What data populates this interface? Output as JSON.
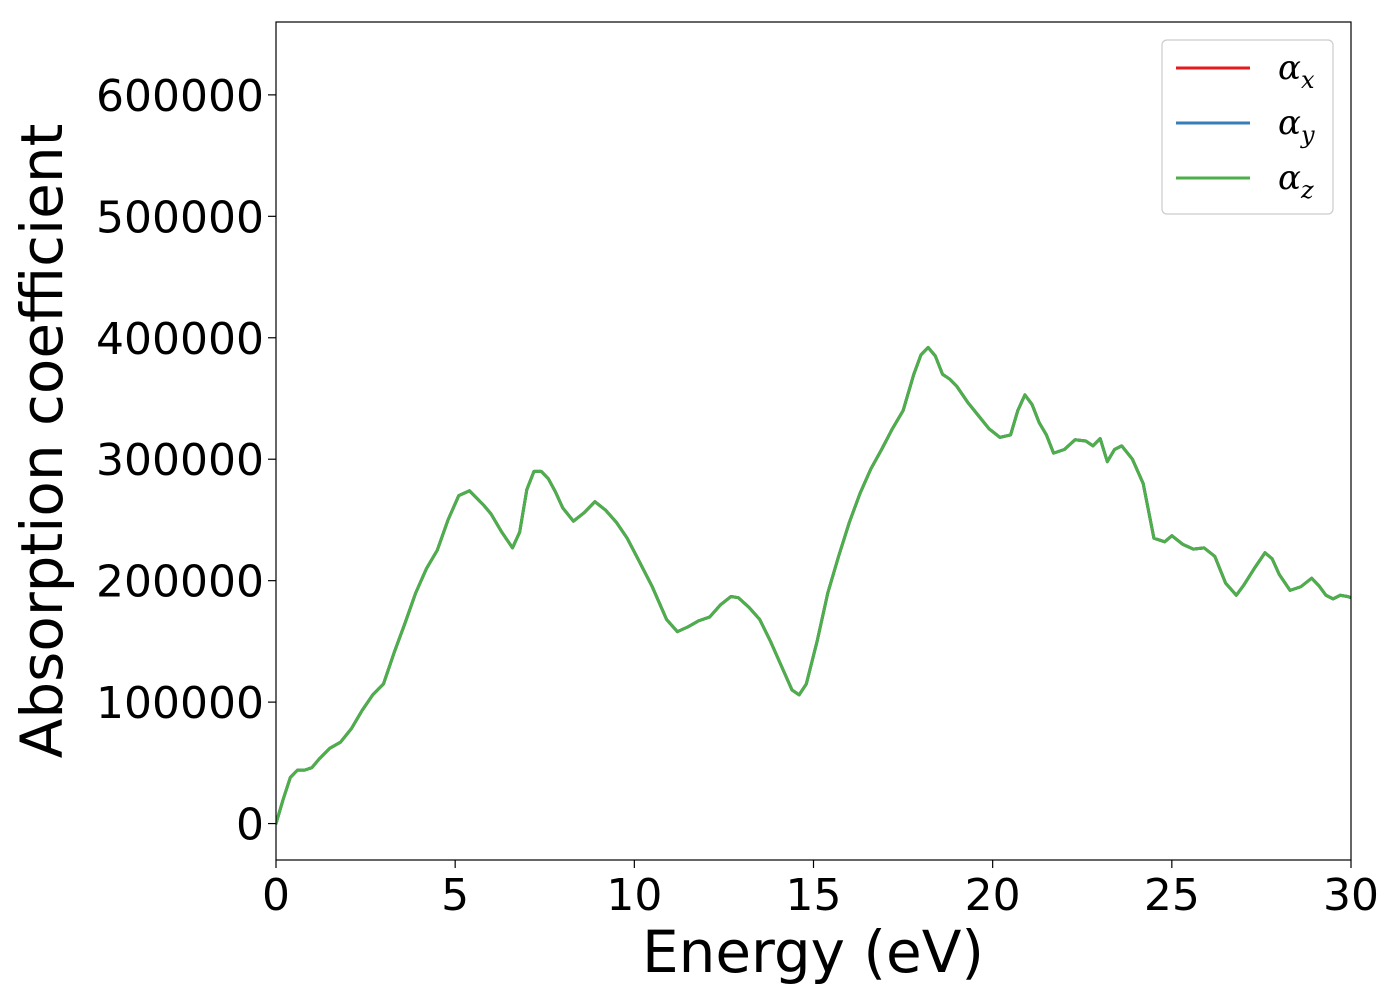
{
  "chart_data": {
    "type": "line",
    "xlabel": "Energy (eV)",
    "ylabel": "Absorption coefficient",
    "xlim": [
      0,
      30
    ],
    "ylim": [
      -30000,
      660000
    ],
    "xticks": [
      0,
      5,
      10,
      15,
      20,
      25,
      30
    ],
    "yticks": [
      0,
      100000,
      200000,
      300000,
      400000,
      500000,
      600000
    ],
    "grid": false,
    "legend_position": "top-right",
    "series": [
      {
        "name": "α",
        "subscript": "x",
        "color": "#e41a1c",
        "x": [
          0,
          0.2,
          0.4,
          0.6,
          0.8,
          1.0,
          1.2,
          1.5,
          1.8,
          2.1,
          2.4,
          2.7,
          3.0,
          3.3,
          3.6,
          3.9,
          4.2,
          4.5,
          4.8,
          5.1,
          5.4,
          5.6,
          5.8,
          6.0,
          6.3,
          6.6,
          6.8,
          7.0,
          7.2,
          7.4,
          7.6,
          7.8,
          8.0,
          8.3,
          8.6,
          8.9,
          9.2,
          9.5,
          9.8,
          10.1,
          10.5,
          10.9,
          11.2,
          11.5,
          11.8,
          12.1,
          12.4,
          12.7,
          12.9,
          13.2,
          13.5,
          13.8,
          14.1,
          14.4,
          14.6,
          14.8,
          15.1,
          15.4,
          15.7,
          16.0,
          16.3,
          16.6,
          16.9,
          17.2,
          17.5,
          17.8,
          18.0,
          18.2,
          18.4,
          18.6,
          18.8,
          19.0,
          19.3,
          19.6,
          19.9,
          20.2,
          20.5,
          20.7,
          20.9,
          21.1,
          21.3,
          21.5,
          21.7,
          22.0,
          22.3,
          22.6,
          22.8,
          23.0,
          23.2,
          23.4,
          23.6,
          23.9,
          24.2,
          24.5,
          24.8,
          25.0,
          25.3,
          25.6,
          25.9,
          26.2,
          26.5,
          26.8,
          27.0,
          27.3,
          27.6,
          27.8,
          28.0,
          28.3,
          28.6,
          28.9,
          29.1,
          29.3,
          29.5,
          29.7,
          29.9,
          30.0
        ],
        "y": [
          0,
          20000,
          38000,
          44000,
          44000,
          46000,
          53000,
          62000,
          67000,
          78000,
          93000,
          106000,
          115000,
          141000,
          165000,
          190000,
          210000,
          225000,
          250000,
          270000,
          274000,
          268000,
          262000,
          255000,
          240000,
          227000,
          240000,
          275000,
          290000,
          290000,
          284000,
          273000,
          260000,
          249000,
          256000,
          265000,
          258000,
          248000,
          235000,
          218000,
          195000,
          168000,
          158000,
          162000,
          167000,
          170000,
          180000,
          187000,
          186000,
          178000,
          168000,
          150000,
          130000,
          110000,
          106000,
          115000,
          150000,
          190000,
          220000,
          248000,
          272000,
          292000,
          308000,
          325000,
          340000,
          370000,
          386000,
          392000,
          385000,
          370000,
          366000,
          360000,
          347000,
          336000,
          325000,
          318000,
          320000,
          340000,
          353000,
          345000,
          330000,
          320000,
          305000,
          308000,
          316000,
          315000,
          311000,
          317000,
          298000,
          308000,
          311000,
          300000,
          280000,
          235000,
          232000,
          237000,
          230000,
          226000,
          227000,
          220000,
          198000,
          188000,
          196000,
          210000,
          223000,
          218000,
          205000,
          192000,
          195000,
          202000,
          196000,
          188000,
          185000,
          188000,
          187000,
          186000
        ]
      },
      {
        "name": "α",
        "subscript": "y",
        "color": "#377eb8",
        "x": [
          0,
          0.2,
          0.4,
          0.6,
          0.8,
          1.0,
          1.2,
          1.5,
          1.8,
          2.1,
          2.4,
          2.7,
          3.0,
          3.3,
          3.6,
          3.9,
          4.2,
          4.5,
          4.8,
          5.1,
          5.4,
          5.6,
          5.8,
          6.0,
          6.3,
          6.6,
          6.8,
          7.0,
          7.2,
          7.4,
          7.6,
          7.8,
          8.0,
          8.3,
          8.6,
          8.9,
          9.2,
          9.5,
          9.8,
          10.1,
          10.5,
          10.9,
          11.2,
          11.5,
          11.8,
          12.1,
          12.4,
          12.7,
          12.9,
          13.2,
          13.5,
          13.8,
          14.1,
          14.4,
          14.6,
          14.8,
          15.1,
          15.4,
          15.7,
          16.0,
          16.3,
          16.6,
          16.9,
          17.2,
          17.5,
          17.8,
          18.0,
          18.2,
          18.4,
          18.6,
          18.8,
          19.0,
          19.3,
          19.6,
          19.9,
          20.2,
          20.5,
          20.7,
          20.9,
          21.1,
          21.3,
          21.5,
          21.7,
          22.0,
          22.3,
          22.6,
          22.8,
          23.0,
          23.2,
          23.4,
          23.6,
          23.9,
          24.2,
          24.5,
          24.8,
          25.0,
          25.3,
          25.6,
          25.9,
          26.2,
          26.5,
          26.8,
          27.0,
          27.3,
          27.6,
          27.8,
          28.0,
          28.3,
          28.6,
          28.9,
          29.1,
          29.3,
          29.5,
          29.7,
          29.9,
          30.0
        ],
        "y": [
          0,
          20000,
          38000,
          44000,
          44000,
          46000,
          53000,
          62000,
          67000,
          78000,
          93000,
          106000,
          115000,
          141000,
          165000,
          190000,
          210000,
          225000,
          250000,
          270000,
          274000,
          268000,
          262000,
          255000,
          240000,
          227000,
          240000,
          275000,
          290000,
          290000,
          284000,
          273000,
          260000,
          249000,
          256000,
          265000,
          258000,
          248000,
          235000,
          218000,
          195000,
          168000,
          158000,
          162000,
          167000,
          170000,
          180000,
          187000,
          186000,
          178000,
          168000,
          150000,
          130000,
          110000,
          106000,
          115000,
          150000,
          190000,
          220000,
          248000,
          272000,
          292000,
          308000,
          325000,
          340000,
          370000,
          386000,
          392000,
          385000,
          370000,
          366000,
          360000,
          347000,
          336000,
          325000,
          318000,
          320000,
          340000,
          353000,
          345000,
          330000,
          320000,
          305000,
          308000,
          316000,
          315000,
          311000,
          317000,
          298000,
          308000,
          311000,
          300000,
          280000,
          235000,
          232000,
          237000,
          230000,
          226000,
          227000,
          220000,
          198000,
          188000,
          196000,
          210000,
          223000,
          218000,
          205000,
          192000,
          195000,
          202000,
          196000,
          188000,
          185000,
          188000,
          187000,
          186000
        ]
      },
      {
        "name": "α",
        "subscript": "z",
        "color": "#4daf4a",
        "x": [
          0,
          0.2,
          0.4,
          0.6,
          0.8,
          1.0,
          1.2,
          1.5,
          1.8,
          2.1,
          2.4,
          2.7,
          3.0,
          3.3,
          3.6,
          3.9,
          4.2,
          4.5,
          4.8,
          5.1,
          5.4,
          5.6,
          5.8,
          6.0,
          6.3,
          6.6,
          6.8,
          7.0,
          7.2,
          7.4,
          7.6,
          7.8,
          8.0,
          8.3,
          8.6,
          8.9,
          9.2,
          9.5,
          9.8,
          10.1,
          10.5,
          10.9,
          11.2,
          11.5,
          11.8,
          12.1,
          12.4,
          12.7,
          12.9,
          13.2,
          13.5,
          13.8,
          14.1,
          14.4,
          14.6,
          14.8,
          15.1,
          15.4,
          15.7,
          16.0,
          16.3,
          16.6,
          16.9,
          17.2,
          17.5,
          17.8,
          18.0,
          18.2,
          18.4,
          18.6,
          18.8,
          19.0,
          19.3,
          19.6,
          19.9,
          20.2,
          20.5,
          20.7,
          20.9,
          21.1,
          21.3,
          21.5,
          21.7,
          22.0,
          22.3,
          22.6,
          22.8,
          23.0,
          23.2,
          23.4,
          23.6,
          23.9,
          24.2,
          24.5,
          24.8,
          25.0,
          25.3,
          25.6,
          25.9,
          26.2,
          26.5,
          26.8,
          27.0,
          27.3,
          27.6,
          27.8,
          28.0,
          28.3,
          28.6,
          28.9,
          29.1,
          29.3,
          29.5,
          29.7,
          29.9,
          30.0
        ],
        "y": [
          0,
          20000,
          38000,
          44000,
          44000,
          46000,
          53000,
          62000,
          67000,
          78000,
          93000,
          106000,
          115000,
          141000,
          165000,
          190000,
          210000,
          225000,
          250000,
          270000,
          274000,
          268000,
          262000,
          255000,
          240000,
          227000,
          240000,
          275000,
          290000,
          290000,
          284000,
          273000,
          260000,
          249000,
          256000,
          265000,
          258000,
          248000,
          235000,
          218000,
          195000,
          168000,
          158000,
          162000,
          167000,
          170000,
          180000,
          187000,
          186000,
          178000,
          168000,
          150000,
          130000,
          110000,
          106000,
          115000,
          150000,
          190000,
          220000,
          248000,
          272000,
          292000,
          308000,
          325000,
          340000,
          370000,
          386000,
          392000,
          385000,
          370000,
          366000,
          360000,
          347000,
          336000,
          325000,
          318000,
          320000,
          340000,
          353000,
          345000,
          330000,
          320000,
          305000,
          308000,
          316000,
          315000,
          311000,
          317000,
          298000,
          308000,
          311000,
          300000,
          280000,
          235000,
          232000,
          237000,
          230000,
          226000,
          227000,
          220000,
          198000,
          188000,
          196000,
          210000,
          223000,
          218000,
          205000,
          192000,
          195000,
          202000,
          196000,
          188000,
          185000,
          188000,
          187000,
          186000
        ]
      }
    ]
  }
}
